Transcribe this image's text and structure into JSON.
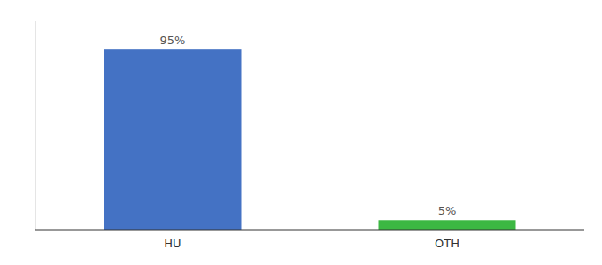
{
  "chart_data": {
    "type": "bar",
    "categories": [
      "HU",
      "OTH"
    ],
    "values": [
      95,
      5
    ],
    "value_labels": [
      "95%",
      "5%"
    ],
    "colors": [
      "#4472c4",
      "#3cb843"
    ],
    "ylim": [
      0,
      110
    ],
    "data_labels": true,
    "tick_labels": "x",
    "grid": false
  }
}
